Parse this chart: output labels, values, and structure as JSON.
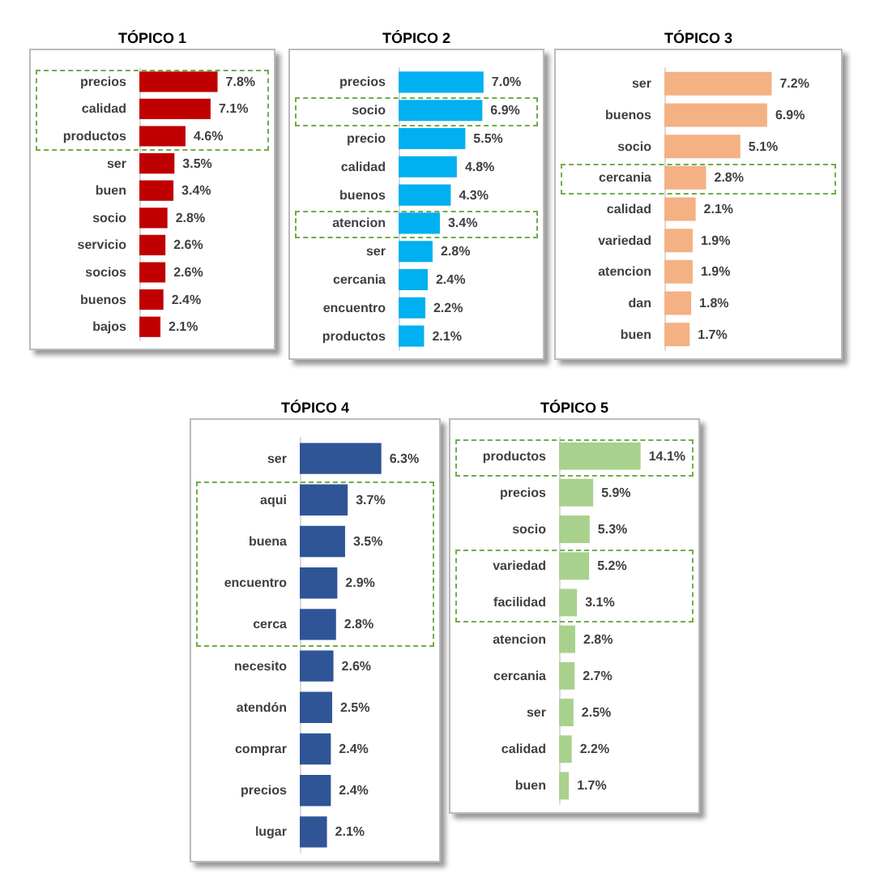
{
  "chart_data": [
    {
      "type": "bar",
      "orientation": "horizontal",
      "title": "TÓPICO 1",
      "categories": [
        "precios",
        "calidad",
        "productos",
        "ser",
        "buen",
        "socio",
        "servicio",
        "socios",
        "buenos",
        "bajos"
      ],
      "values": [
        7.8,
        7.1,
        4.6,
        3.5,
        3.4,
        2.8,
        2.6,
        2.6,
        2.4,
        2.1
      ],
      "value_labels": [
        "7.8%",
        "7.1%",
        "4.6%",
        "3.5%",
        "3.4%",
        "2.8%",
        "2.6%",
        "2.6%",
        "2.4%",
        "2.1%"
      ],
      "color": "#c00000"
    },
    {
      "type": "bar",
      "orientation": "horizontal",
      "title": "TÓPICO 2",
      "categories": [
        "precios",
        "socio",
        "precio",
        "calidad",
        "buenos",
        "atencion",
        "ser",
        "cercania",
        "encuentro",
        "productos"
      ],
      "values": [
        7.0,
        6.9,
        5.5,
        4.8,
        4.3,
        3.4,
        2.8,
        2.4,
        2.2,
        2.1
      ],
      "value_labels": [
        "7.0%",
        "6.9%",
        "5.5%",
        "4.8%",
        "4.3%",
        "3.4%",
        "2.8%",
        "2.4%",
        "2.2%",
        "2.1%"
      ],
      "color": "#00b0f0"
    },
    {
      "type": "bar",
      "orientation": "horizontal",
      "title": "TÓPICO 3",
      "categories": [
        "ser",
        "buenos",
        "socio",
        "cercania",
        "calidad",
        "variedad",
        "atencion",
        "dan",
        "buen"
      ],
      "values": [
        7.2,
        6.9,
        5.1,
        2.8,
        2.1,
        1.9,
        1.9,
        1.8,
        1.7
      ],
      "value_labels": [
        "7.2%",
        "6.9%",
        "5.1%",
        "2.8%",
        "2.1%",
        "1.9%",
        "1.9%",
        "1.8%",
        "1.7%"
      ],
      "color": "#f4b183"
    },
    {
      "type": "bar",
      "orientation": "horizontal",
      "title": "TÓPICO 4",
      "categories": [
        "ser",
        "aqui",
        "buena",
        "encuentro",
        "cerca",
        "necesito",
        "atendón",
        "comprar",
        "precios",
        "lugar"
      ],
      "values": [
        6.3,
        3.7,
        3.5,
        2.9,
        2.8,
        2.6,
        2.5,
        2.4,
        2.4,
        2.1
      ],
      "value_labels": [
        "6.3%",
        "3.7%",
        "3.5%",
        "2.9%",
        "2.8%",
        "2.6%",
        "2.5%",
        "2.4%",
        "2.4%",
        "2.1%"
      ],
      "color": "#2f5597"
    },
    {
      "type": "bar",
      "orientation": "horizontal",
      "title": "TÓPICO 5",
      "categories": [
        "productos",
        "precios",
        "socio",
        "variedad",
        "facilidad",
        "atencion",
        "cercania",
        "ser",
        "calidad",
        "buen"
      ],
      "values": [
        14.1,
        5.9,
        5.3,
        5.2,
        3.1,
        2.8,
        2.7,
        2.5,
        2.2,
        1.7
      ],
      "value_labels": [
        "14.1%",
        "5.9%",
        "5.3%",
        "5.2%",
        "3.1%",
        "2.8%",
        "2.7%",
        "2.5%",
        "2.2%",
        "1.7%"
      ],
      "color": "#a9d18e"
    }
  ]
}
